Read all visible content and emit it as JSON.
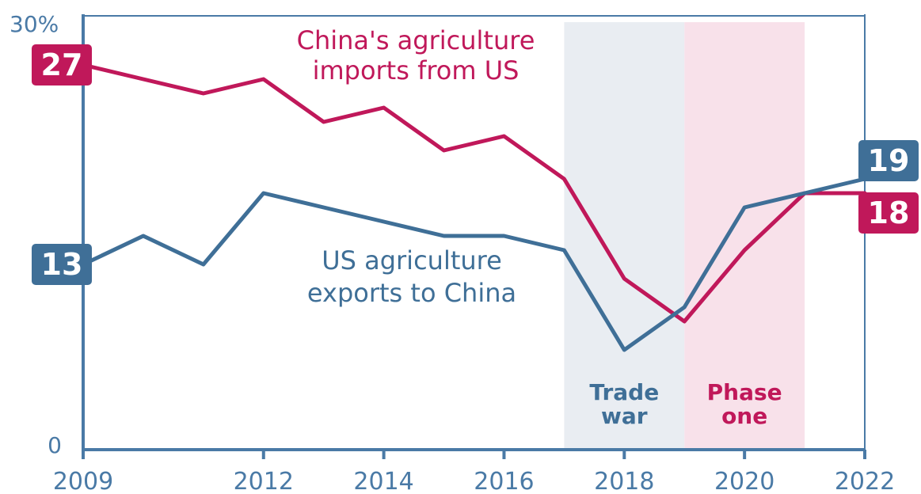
{
  "chart_data": {
    "type": "line",
    "x": [
      2009,
      2010,
      2011,
      2012,
      2013,
      2014,
      2015,
      2016,
      2017,
      2018,
      2019,
      2020,
      2021,
      2022
    ],
    "ylim": [
      0,
      30
    ],
    "y_tick_labels": [
      "0",
      "30%"
    ],
    "x_tick_labels": [
      "2009",
      "2012",
      "2014",
      "2016",
      "2018",
      "2020",
      "2022"
    ],
    "x_tick_values": [
      2009,
      2012,
      2014,
      2016,
      2018,
      2020,
      2022
    ],
    "series": [
      {
        "name": "China's agriculture imports from US",
        "label_lines": [
          "China's agriculture",
          "imports from US"
        ],
        "color": "#c0185a",
        "values": [
          27,
          26,
          25,
          26,
          23,
          24,
          21,
          22,
          19,
          12,
          9,
          14,
          18,
          18
        ],
        "start_badge": "27",
        "end_badge": "18"
      },
      {
        "name": "US agriculture exports to China",
        "label_lines": [
          "US agriculture",
          "exports to China"
        ],
        "color": "#3f6f97",
        "values": [
          13,
          15,
          13,
          18,
          17,
          16,
          15,
          15,
          14,
          7,
          10,
          17,
          18,
          19
        ],
        "start_badge": "13",
        "end_badge": "19"
      }
    ],
    "shaded_periods": [
      {
        "label_lines": [
          "Trade",
          "war"
        ],
        "from": 2017,
        "to": 2019,
        "fill": "#e9edf2",
        "text_color": "#3f6f97"
      },
      {
        "label_lines": [
          "Phase",
          "one"
        ],
        "from": 2019,
        "to": 2021,
        "fill": "#f8e1ea",
        "text_color": "#c0185a"
      }
    ],
    "grid": false,
    "legend": "none"
  }
}
